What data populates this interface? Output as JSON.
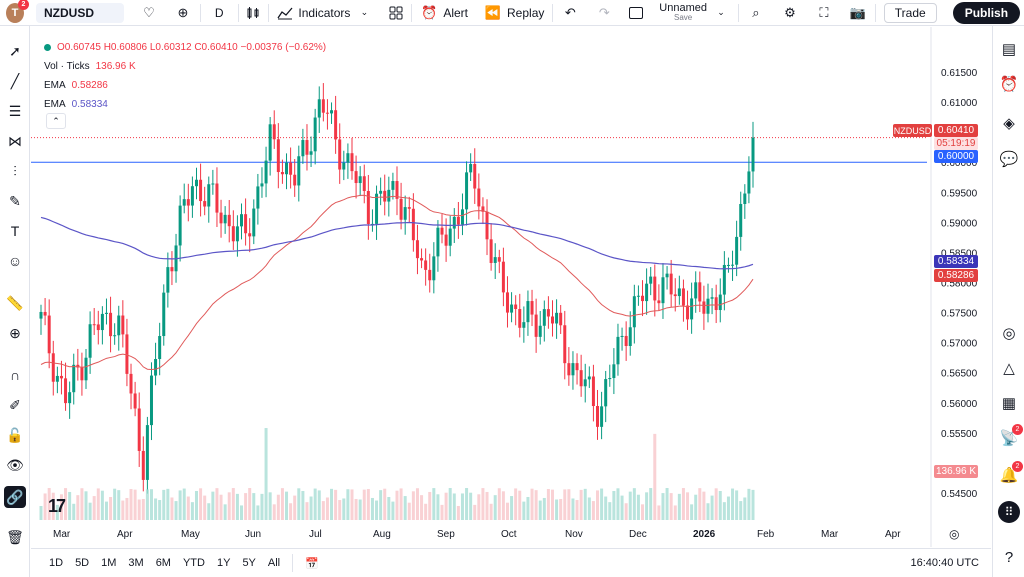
{
  "topbar": {
    "avatar_letter": "T",
    "avatar_badge": "2",
    "symbol": "NZDUSD",
    "interval": "D",
    "indicators_label": "Indicators",
    "alert_label": "Alert",
    "replay_label": "Replay",
    "layout_name": "Unnamed",
    "layout_status": "Save",
    "trade_label": "Trade",
    "publish_label": "Publish"
  },
  "legend": {
    "ohlc": "O0.60745 H0.60806 L0.60312 C0.60410 −0.00376 (−0.62%)",
    "vol_label": "Vol · Ticks",
    "vol_value": "136.96 K",
    "ema1_label": "EMA",
    "ema1_value": "0.58286",
    "ema2_label": "EMA",
    "ema2_value": "0.58334"
  },
  "price_axis": {
    "ticks": [
      "0.61500",
      "0.61000",
      "0.60500",
      "0.60000",
      "0.59500",
      "0.59000",
      "0.58500",
      "0.58000",
      "0.57500",
      "0.57000",
      "0.56500",
      "0.56000",
      "0.55500",
      "0.54500"
    ],
    "last_price": "0.60410",
    "countdown": "05:19:19",
    "line_price": "0.60000",
    "ema2_tag": "0.58334",
    "ema1_tag": "0.58286",
    "vol_tag": "136.96 K",
    "symbol_tag": "NZDUSD"
  },
  "time_axis": {
    "labels": [
      "Mar",
      "Apr",
      "May",
      "Jun",
      "Jul",
      "Aug",
      "Sep",
      "Oct",
      "Nov",
      "Dec",
      "2026",
      "Feb",
      "Mar",
      "Apr"
    ]
  },
  "bottombar": {
    "ranges": [
      "1D",
      "5D",
      "1M",
      "3M",
      "6M",
      "YTD",
      "1Y",
      "5Y",
      "All"
    ],
    "clock": "16:40:40 UTC"
  },
  "colors": {
    "up": "#089981",
    "down": "#f23645",
    "ema_fast": "#e05a5a",
    "ema_slow": "#5b55c7",
    "hline": "#2962ff"
  },
  "chart_data": {
    "type": "candlestick",
    "symbol": "NZDUSD",
    "interval": "D",
    "ylim": [
      0.543,
      0.617
    ],
    "horizontal_line": 0.6,
    "close_path": [
      {
        "x": "Mar",
        "y": 0.5735
      },
      {
        "x": "Mar",
        "y": 0.56
      },
      {
        "x": "Mar",
        "y": 0.572
      },
      {
        "x": "Apr",
        "y": 0.5745
      },
      {
        "x": "Apr",
        "y": 0.55
      },
      {
        "x": "Apr",
        "y": 0.583
      },
      {
        "x": "May",
        "y": 0.597
      },
      {
        "x": "May",
        "y": 0.592
      },
      {
        "x": "May",
        "y": 0.587
      },
      {
        "x": "Jun",
        "y": 0.603
      },
      {
        "x": "Jun",
        "y": 0.597
      },
      {
        "x": "Jul",
        "y": 0.61
      },
      {
        "x": "Jul",
        "y": 0.6
      },
      {
        "x": "Aug",
        "y": 0.592
      },
      {
        "x": "Aug",
        "y": 0.596
      },
      {
        "x": "Aug",
        "y": 0.582
      },
      {
        "x": "Sep",
        "y": 0.588
      },
      {
        "x": "Sep",
        "y": 0.598
      },
      {
        "x": "Oct",
        "y": 0.58
      },
      {
        "x": "Oct",
        "y": 0.573
      },
      {
        "x": "Nov",
        "y": 0.575
      },
      {
        "x": "Nov",
        "y": 0.565
      },
      {
        "x": "Nov",
        "y": 0.559
      },
      {
        "x": "Dec",
        "y": 0.573
      },
      {
        "x": "Dec",
        "y": 0.58
      },
      {
        "x": "Dec",
        "y": 0.578
      },
      {
        "x": "2026",
        "y": 0.576
      },
      {
        "x": "2026",
        "y": 0.58
      },
      {
        "x": "Feb",
        "y": 0.6041
      }
    ]
  }
}
